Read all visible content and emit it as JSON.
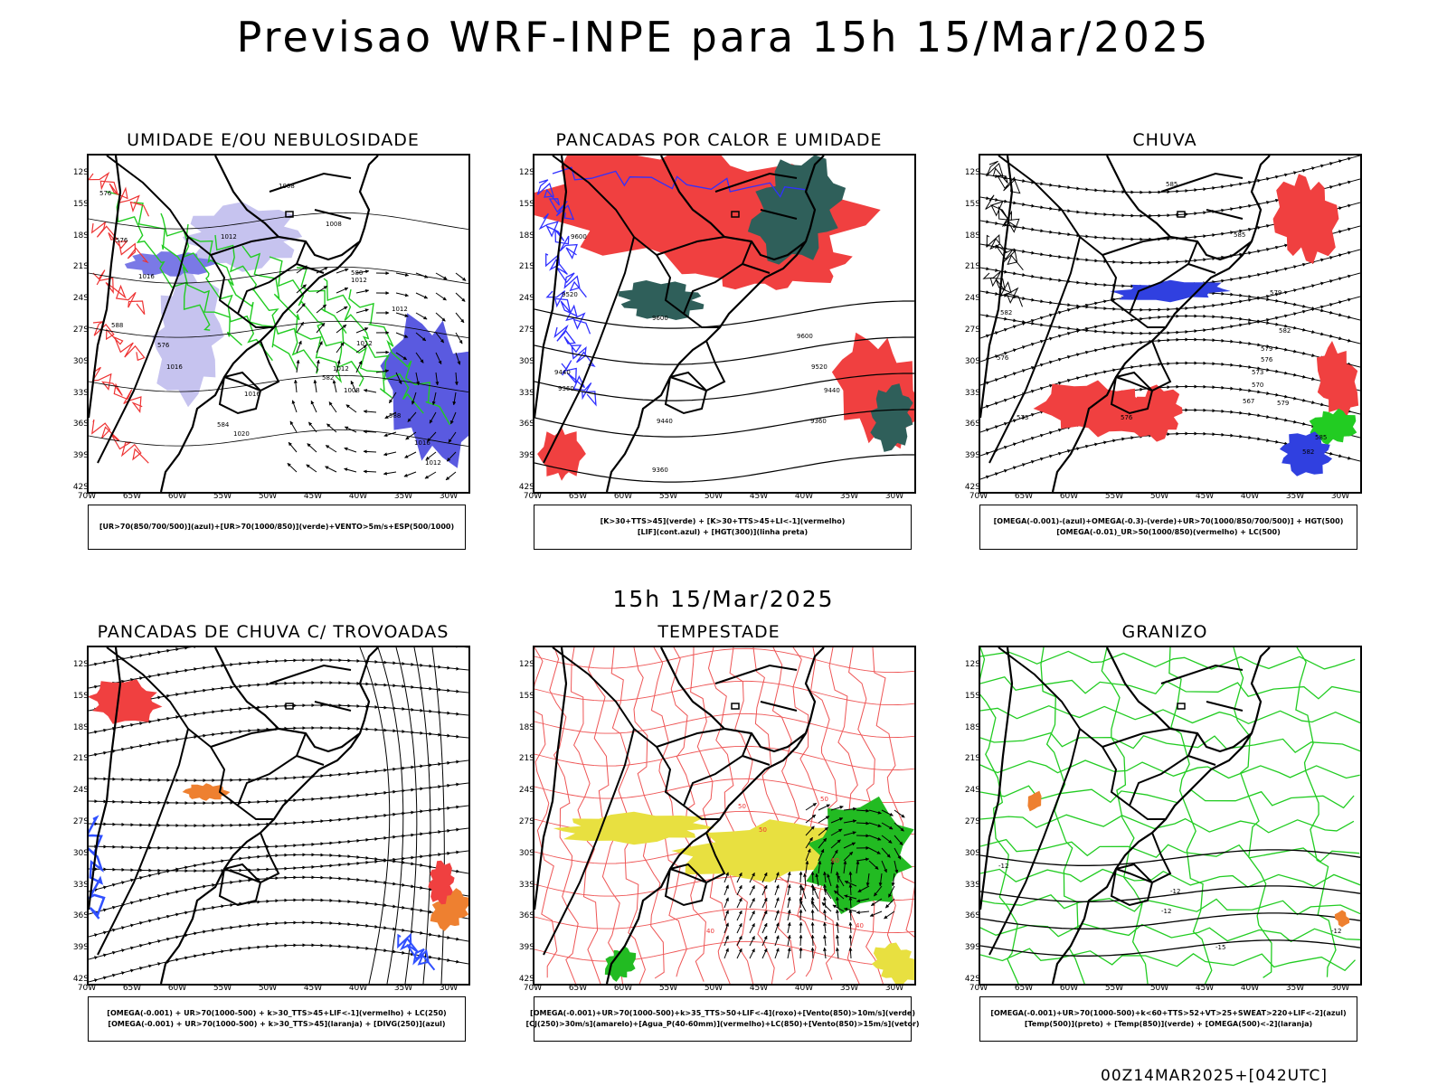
{
  "main_title": "Previsao WRF-INPE  para 15h 15/Mar/2025",
  "mid_title": "15h 15/Mar/2025",
  "footer": "00Z14MAR2025+[042UTC]",
  "lat_ticks": [
    "12S",
    "15S",
    "18S",
    "21S",
    "24S",
    "27S",
    "30S",
    "33S",
    "36S",
    "39S",
    "42S"
  ],
  "lon_ticks": [
    "70W",
    "65W",
    "60W",
    "55W",
    "50W",
    "45W",
    "40W",
    "35W",
    "30W"
  ],
  "panels": [
    {
      "title": "UMIDADE E/OU NEBULOSIDADE",
      "legend": [
        "[UR>70(850/700/500)](azul)+[UR>70(1000/850)](verde)+VENTO>5m/s+ESP(500/1000)"
      ]
    },
    {
      "title": "PANCADAS POR CALOR E UMIDADE",
      "legend": [
        "[K>30+TTS>45](verde) + [K>30+TTS>45+LI<-1](vermelho)",
        "[LIF](cont.azul) + [HGT(300)](linha preta)"
      ]
    },
    {
      "title": "CHUVA",
      "legend": [
        "[OMEGA(-0.001)-(azul)+OMEGA(-0.3)-(verde)+UR>70(1000/850/700/500)] + HGT(500)",
        "[OMEGA(-0.01)_UR>50(1000/850)(vermelho) + LC(500)"
      ]
    },
    {
      "title": "PANCADAS DE CHUVA C/ TROVOADAS",
      "legend": [
        "[OMEGA(-0.001) + UR>70(1000-500) + k>30_TTS>45+LIF<-1](vermelho) + LC(250)",
        "[OMEGA(-0.001) + UR>70(1000-500) + k>30_TTS>45](laranja) + [DIVG(250)](azul)"
      ]
    },
    {
      "title": "TEMPESTADE",
      "legend": [
        "[OMEGA(-0.001)+UR>70(1000-500)+k>35_TTS>50+LIF<-4](roxo)+[Vento(850)>10m/s](verde)",
        "[CJ(250)>30m/s](amarelo)+[Agua_P(40-60mm)](vermelho)+LC(850)+[Vento(850)>15m/s](vetor)"
      ]
    },
    {
      "title": "GRANIZO",
      "legend": [
        "[OMEGA(-0.001)+UR>70(1000-500)+k<60+TTS>52+VT>25+SWEAT>220+LIF<-2](azul)",
        "[Temp(500)](preto) + [Temp(850)](verde) + [OMEGA(500)<-2](laranja)"
      ]
    }
  ],
  "contour_labels": {
    "p1": [
      "1008",
      "1008",
      "1012",
      "1012",
      "1016",
      "1012",
      "1012",
      "1012",
      "1008",
      "1016",
      "1016",
      "1020",
      "1016",
      "1012",
      "576",
      "576",
      "580",
      "584",
      "588",
      "576",
      "582",
      "588"
    ],
    "p2": [
      "9600",
      "9520",
      "9600",
      "9440",
      "9600",
      "9520",
      "9440",
      "9360",
      "9360",
      "9440",
      "9360"
    ],
    "p3": [
      "585",
      "582",
      "579",
      "576",
      "573",
      "570",
      "567",
      "573",
      "576",
      "579",
      "582",
      "585",
      "576",
      "579",
      "582",
      "585"
    ],
    "p5": [
      "50",
      "50",
      "50",
      "60",
      "40",
      "40"
    ],
    "p6": [
      "-12",
      "-12",
      "-15",
      "-12",
      "-12"
    ]
  }
}
